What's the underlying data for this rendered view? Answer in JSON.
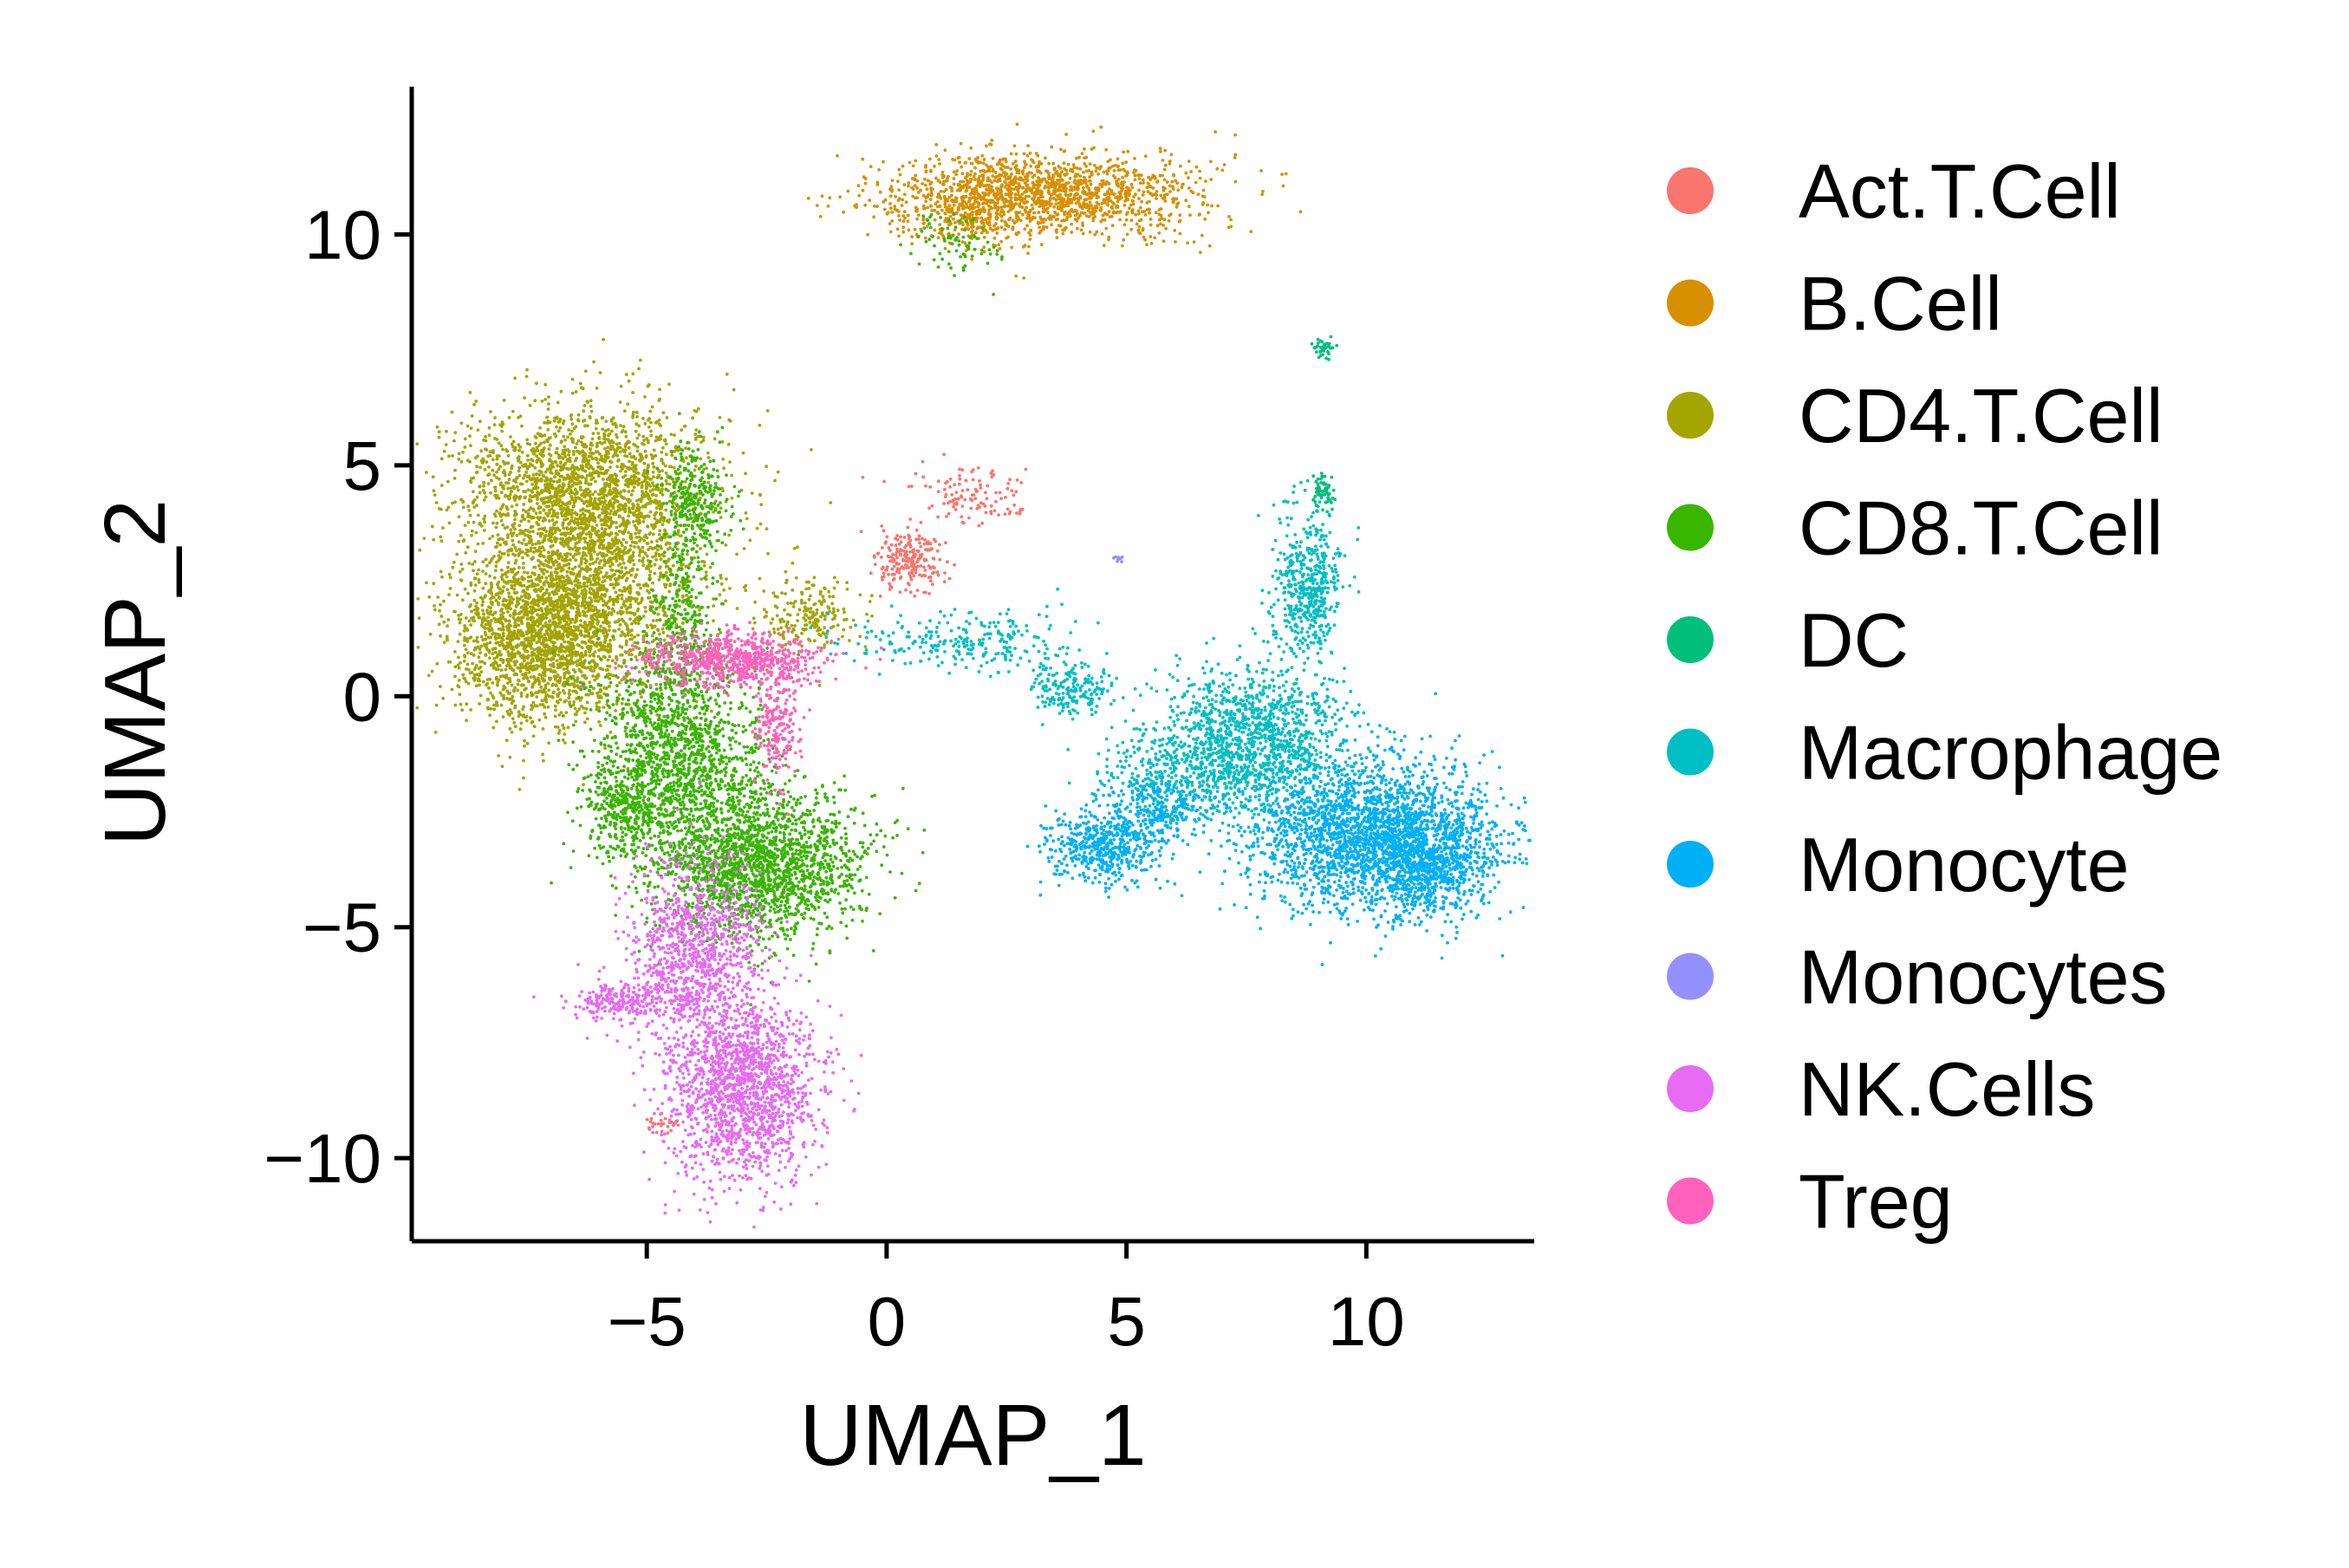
{
  "chart_data": {
    "type": "scatter",
    "title": "",
    "xlabel": "UMAP_1",
    "ylabel": "UMAP_2",
    "xlim": [
      -9.9,
      13.5
    ],
    "ylim": [
      -11.8,
      13.2
    ],
    "xticks": [
      -5,
      0,
      5,
      10
    ],
    "yticks": [
      -10,
      -5,
      0,
      5,
      10
    ],
    "xtick_labels": [
      "−5",
      "0",
      "5",
      "10"
    ],
    "ytick_labels": [
      "−10",
      "−5",
      "0",
      "5",
      "10"
    ],
    "legend_position": "right",
    "point_style": "small dots, densely sampled clusters",
    "series": [
      {
        "name": "Act.T.Cell",
        "color": "#F8766D",
        "clusters": [
          {
            "cx": 0.5,
            "cy": 2.9,
            "sx": 0.35,
            "sy": 0.35,
            "n": 220
          },
          {
            "cx": 1.7,
            "cy": 4.3,
            "sx": 0.55,
            "sy": 0.3,
            "n": 120
          },
          {
            "cx": -4.7,
            "cy": -9.2,
            "sx": 0.2,
            "sy": 0.12,
            "n": 25
          }
        ]
      },
      {
        "name": "B.Cell",
        "color": "#D89000",
        "clusters": [
          {
            "cx": 3.3,
            "cy": 10.9,
            "sx": 1.6,
            "sy": 0.45,
            "n": 1500
          },
          {
            "cx": 1.8,
            "cy": 10.4,
            "sx": 0.7,
            "sy": 0.35,
            "n": 250
          }
        ]
      },
      {
        "name": "CD4.T.Cell",
        "color": "#A3A500",
        "clusters": [
          {
            "cx": -6.3,
            "cy": 4.7,
            "sx": 1.3,
            "sy": 0.8,
            "n": 1500
          },
          {
            "cx": -7.3,
            "cy": 1.2,
            "sx": 0.9,
            "sy": 0.9,
            "n": 1500
          },
          {
            "cx": -6.2,
            "cy": 2.6,
            "sx": 1.2,
            "sy": 1.3,
            "n": 2000
          },
          {
            "cx": -1.7,
            "cy": 1.8,
            "sx": 0.5,
            "sy": 0.35,
            "n": 200
          }
        ]
      },
      {
        "name": "CD8.T.Cell",
        "color": "#39B600",
        "clusters": [
          {
            "cx": -4.0,
            "cy": 4.2,
            "sx": 0.35,
            "sy": 0.6,
            "n": 300
          },
          {
            "cx": -4.3,
            "cy": 1.8,
            "sx": 0.3,
            "sy": 0.8,
            "n": 250
          },
          {
            "cx": -4.4,
            "cy": -1.2,
            "sx": 0.9,
            "sy": 1.1,
            "n": 1500
          },
          {
            "cx": -2.7,
            "cy": -3.6,
            "sx": 1.1,
            "sy": 0.8,
            "n": 2000
          },
          {
            "cx": -5.4,
            "cy": -2.5,
            "sx": 0.4,
            "sy": 0.5,
            "n": 300
          },
          {
            "cx": 1.5,
            "cy": 9.8,
            "sx": 0.5,
            "sy": 0.35,
            "n": 80
          }
        ]
      },
      {
        "name": "DC",
        "color": "#00BF7D",
        "clusters": [
          {
            "cx": 9.1,
            "cy": 4.4,
            "sx": 0.12,
            "sy": 0.2,
            "n": 70
          },
          {
            "cx": 9.1,
            "cy": 7.6,
            "sx": 0.1,
            "sy": 0.15,
            "n": 35
          }
        ]
      },
      {
        "name": "Macrophage",
        "color": "#00BFC4",
        "clusters": [
          {
            "cx": 7.6,
            "cy": -1.0,
            "sx": 1.0,
            "sy": 0.8,
            "n": 1400
          },
          {
            "cx": 8.8,
            "cy": 2.4,
            "sx": 0.35,
            "sy": 0.8,
            "n": 500
          },
          {
            "cx": 3.8,
            "cy": 0.2,
            "sx": 0.5,
            "sy": 0.3,
            "n": 200
          },
          {
            "cx": 1.5,
            "cy": 1.2,
            "sx": 1.2,
            "sy": 0.3,
            "n": 250
          },
          {
            "cx": 5.8,
            "cy": -1.8,
            "sx": 0.7,
            "sy": 0.5,
            "n": 250
          }
        ]
      },
      {
        "name": "Monocyte",
        "color": "#00B0F6",
        "clusters": [
          {
            "cx": 10.2,
            "cy": -3.0,
            "sx": 1.3,
            "sy": 0.8,
            "n": 2500
          },
          {
            "cx": 11.3,
            "cy": -3.8,
            "sx": 0.6,
            "sy": 0.5,
            "n": 500
          },
          {
            "cx": 4.5,
            "cy": -3.3,
            "sx": 0.6,
            "sy": 0.4,
            "n": 500
          },
          {
            "cx": 5.6,
            "cy": -2.4,
            "sx": 0.5,
            "sy": 0.35,
            "n": 250
          }
        ]
      },
      {
        "name": "Monocytes",
        "color": "#9590FF",
        "clusters": [
          {
            "cx": 4.8,
            "cy": 3.0,
            "sx": 0.06,
            "sy": 0.05,
            "n": 8
          }
        ]
      },
      {
        "name": "NK.Cells",
        "color": "#E76BF3",
        "clusters": [
          {
            "cx": -4.0,
            "cy": -5.5,
            "sx": 0.7,
            "sy": 1.0,
            "n": 1000
          },
          {
            "cx": -3.0,
            "cy": -8.5,
            "sx": 0.8,
            "sy": 1.0,
            "n": 1600
          },
          {
            "cx": -5.6,
            "cy": -6.6,
            "sx": 0.45,
            "sy": 0.18,
            "n": 200
          }
        ]
      },
      {
        "name": "Treg",
        "color": "#FF62BC",
        "clusters": [
          {
            "cx": -3.2,
            "cy": 0.8,
            "sx": 0.9,
            "sy": 0.3,
            "n": 700
          },
          {
            "cx": -2.3,
            "cy": -0.6,
            "sx": 0.25,
            "sy": 0.6,
            "n": 200
          }
        ]
      }
    ]
  }
}
